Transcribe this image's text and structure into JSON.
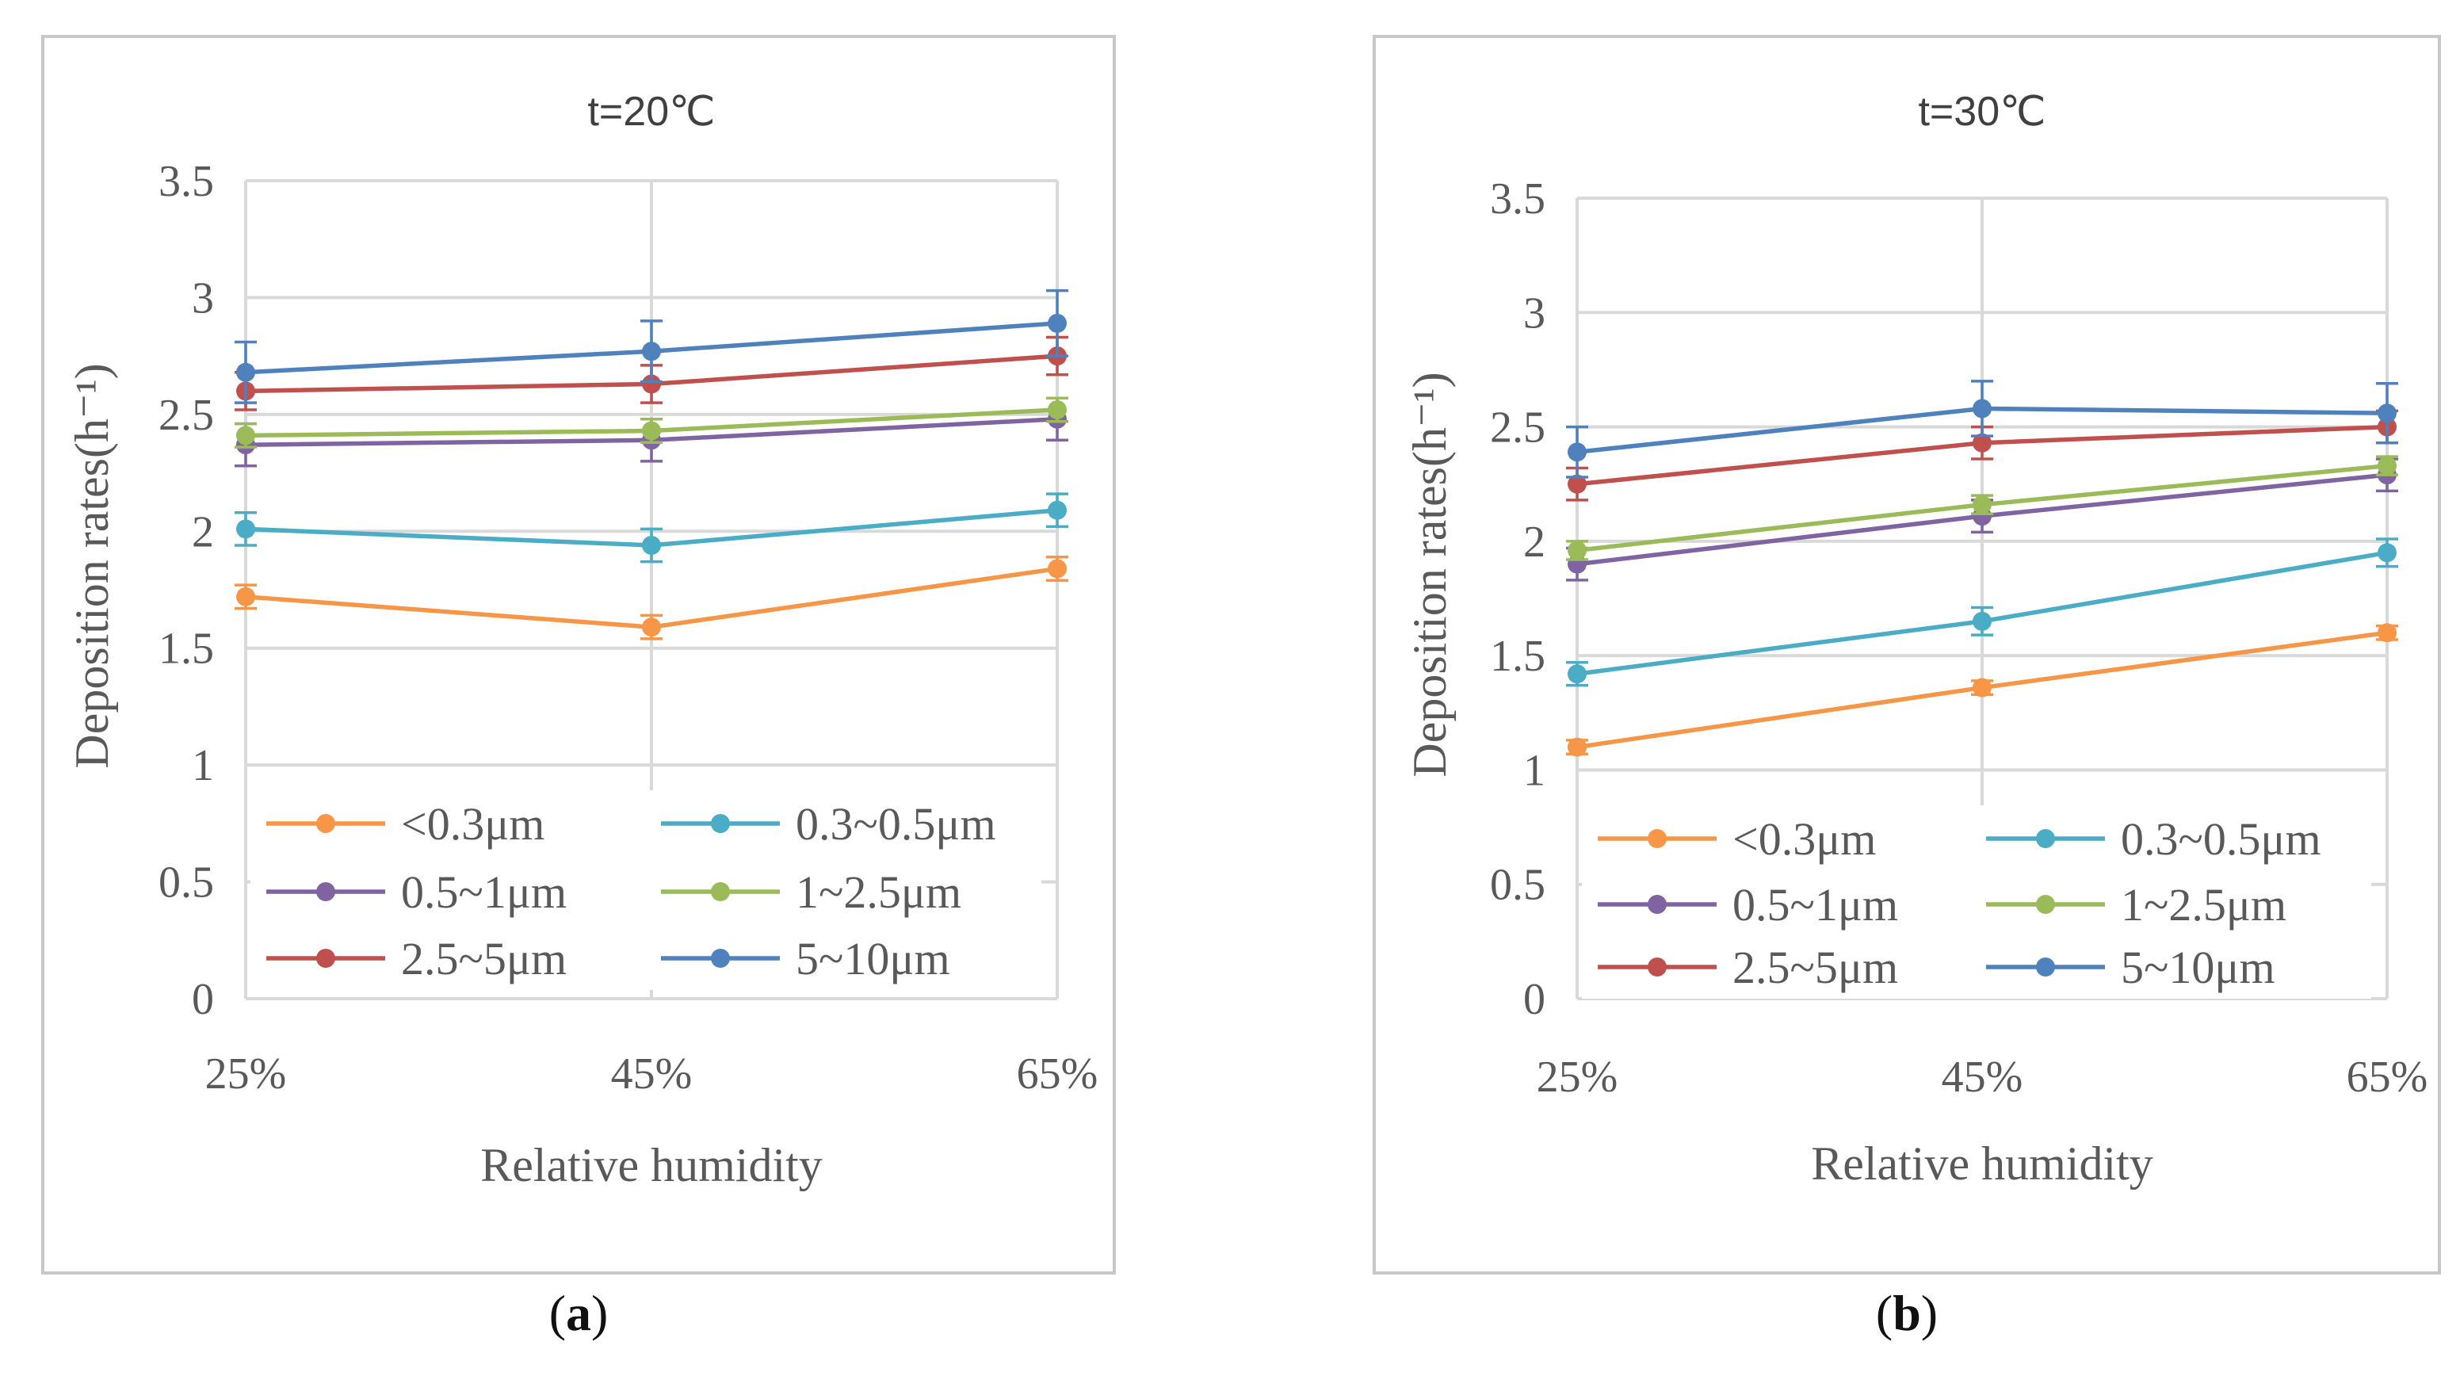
{
  "chart_data": [
    {
      "type": "line",
      "title": "t=20℃",
      "xlabel": "Relative humidity",
      "ylabel": "Deposition rates(h⁻¹)",
      "categories": [
        "25%",
        "45%",
        "65%"
      ],
      "ylim": [
        0,
        3.5
      ],
      "yticks": [
        "0",
        "0.5",
        "1",
        "1.5",
        "2",
        "2.5",
        "3",
        "3.5"
      ],
      "grid": true,
      "legend_position": "lower inside",
      "series": [
        {
          "name": "<0.3μm",
          "color": "#F79646",
          "values": [
            1.72,
            1.59,
            1.84
          ],
          "errors": [
            0.05,
            0.05,
            0.05
          ]
        },
        {
          "name": "0.3~0.5μm",
          "color": "#4BACC6",
          "values": [
            2.01,
            1.94,
            2.09
          ],
          "errors": [
            0.07,
            0.07,
            0.07
          ]
        },
        {
          "name": "0.5~1μm",
          "color": "#8064A2",
          "values": [
            2.37,
            2.39,
            2.48
          ],
          "errors": [
            0.09,
            0.09,
            0.09
          ]
        },
        {
          "name": "1~2.5μm",
          "color": "#9BBB59",
          "values": [
            2.41,
            2.43,
            2.52
          ],
          "errors": [
            0.05,
            0.05,
            0.05
          ]
        },
        {
          "name": "2.5~5μm",
          "color": "#C0504D",
          "values": [
            2.6,
            2.63,
            2.75
          ],
          "errors": [
            0.08,
            0.08,
            0.08
          ]
        },
        {
          "name": "5~10μm",
          "color": "#4F81BD",
          "values": [
            2.68,
            2.77,
            2.89
          ],
          "errors": [
            0.13,
            0.13,
            0.14
          ]
        }
      ]
    },
    {
      "type": "line",
      "title": "t=30℃",
      "xlabel": "Relative humidity",
      "ylabel": "Deposition rates(h⁻¹)",
      "categories": [
        "25%",
        "45%",
        "65%"
      ],
      "ylim": [
        0,
        3.5
      ],
      "yticks": [
        "0",
        "0.5",
        "1",
        "1.5",
        "2",
        "2.5",
        "3",
        "3.5"
      ],
      "grid": true,
      "legend_position": "lower inside",
      "series": [
        {
          "name": "<0.3μm",
          "color": "#F79646",
          "values": [
            1.1,
            1.36,
            1.6
          ],
          "errors": [
            0.03,
            0.03,
            0.03
          ]
        },
        {
          "name": "0.3~0.5μm",
          "color": "#4BACC6",
          "values": [
            1.42,
            1.65,
            1.95
          ],
          "errors": [
            0.05,
            0.06,
            0.06
          ]
        },
        {
          "name": "0.5~1μm",
          "color": "#8064A2",
          "values": [
            1.9,
            2.11,
            2.29
          ],
          "errors": [
            0.07,
            0.07,
            0.07
          ]
        },
        {
          "name": "1~2.5μm",
          "color": "#9BBB59",
          "values": [
            1.96,
            2.16,
            2.33
          ],
          "errors": [
            0.04,
            0.04,
            0.04
          ]
        },
        {
          "name": "2.5~5μm",
          "color": "#C0504D",
          "values": [
            2.25,
            2.43,
            2.5
          ],
          "errors": [
            0.07,
            0.07,
            0.07
          ]
        },
        {
          "name": "5~10μm",
          "color": "#4F81BD",
          "values": [
            2.39,
            2.58,
            2.56
          ],
          "errors": [
            0.11,
            0.12,
            0.13
          ]
        }
      ]
    }
  ],
  "captions": [
    {
      "letter": "a",
      "open": "(",
      "close": ")"
    },
    {
      "letter": "b",
      "open": "(",
      "close": ")"
    }
  ]
}
